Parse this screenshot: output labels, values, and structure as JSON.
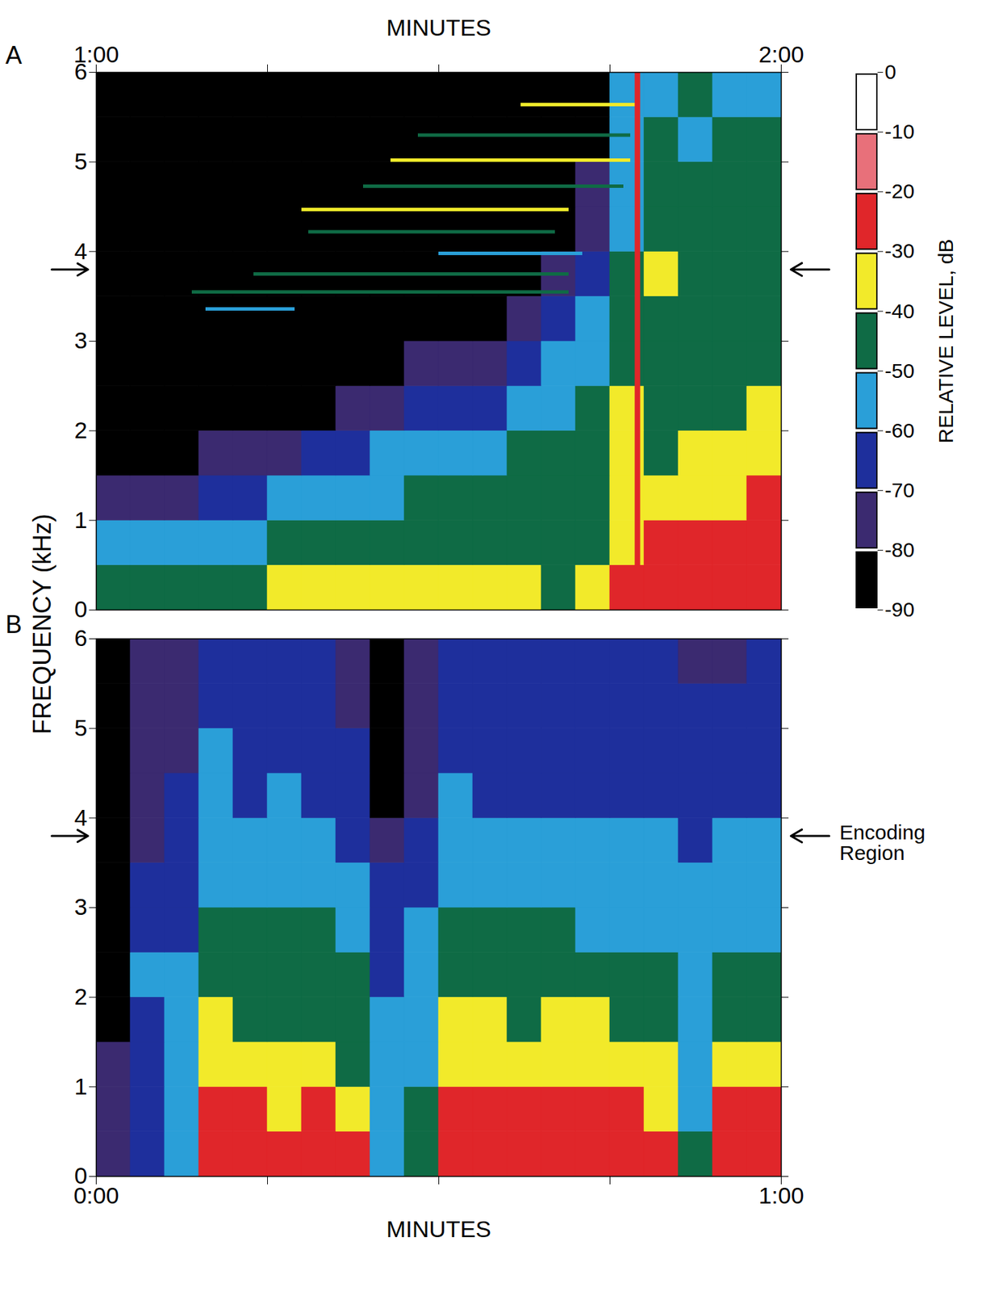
{
  "chart_data": {
    "type": "heatmap",
    "ylabel": "FREQUENCY (kHz)",
    "ylim": [
      0,
      6
    ],
    "yticks": [
      0,
      1,
      2,
      3,
      4,
      5,
      6
    ],
    "frequency_edges": [
      0,
      0.5,
      1,
      1.5,
      2,
      2.5,
      3,
      3.5,
      4,
      4.5,
      5,
      5.5,
      6
    ],
    "encoding_region": 3.8,
    "colorbar": {
      "label": "RELATIVE LEVEL, dB",
      "lim": [
        -90,
        0
      ],
      "ticks": [
        0,
        -10,
        -20,
        -30,
        -40,
        -50,
        -60,
        -70,
        -80,
        -90
      ],
      "levels": [
        -90,
        -80,
        -70,
        -60,
        -50,
        -40,
        -30,
        -20,
        -10,
        0
      ],
      "colors": [
        "#000000",
        "#3b2a70",
        "#1e2f9c",
        "#2a9fd8",
        "#0f6b45",
        "#f2ea2a",
        "#e0262a",
        "#e8707a",
        "#ffffff"
      ]
    },
    "panels": [
      {
        "panel": "A",
        "xlabel": "MINUTES",
        "xlim": [
          1,
          2
        ],
        "xticks": [
          {
            "value": 1,
            "label": "1:00"
          },
          {
            "value": 2,
            "label": "2:00"
          }
        ],
        "x_minor_ticks": [
          1.25,
          1.5,
          1.75
        ],
        "time_edges": [
          1,
          1.05,
          1.1,
          1.15,
          1.2,
          1.25,
          1.3,
          1.35,
          1.4,
          1.45,
          1.5,
          1.55,
          1.6,
          1.65,
          1.7,
          1.75,
          1.8,
          1.85,
          1.9,
          1.95,
          2
        ],
        "values": [
          [
            -45,
            -45,
            -45,
            -42,
            -42,
            -40,
            -40,
            -40,
            -40,
            -38,
            -40,
            -40,
            -40,
            -42,
            -40,
            -30,
            -25,
            -25,
            -22,
            -25
          ],
          [
            -58,
            -58,
            -60,
            -55,
            -52,
            -50,
            -48,
            -48,
            -45,
            -45,
            -45,
            -45,
            -42,
            -45,
            -45,
            -32,
            -25,
            -30,
            -28,
            -25
          ],
          [
            -78,
            -75,
            -72,
            -68,
            -62,
            -60,
            -58,
            -55,
            -52,
            -50,
            -48,
            -48,
            -45,
            -45,
            -45,
            -35,
            -38,
            -35,
            -32,
            -30
          ],
          [
            -85,
            -85,
            -82,
            -80,
            -78,
            -72,
            -68,
            -62,
            -60,
            -58,
            -56,
            -55,
            -50,
            -48,
            -45,
            -38,
            -42,
            -40,
            -38,
            -40
          ],
          [
            -85,
            -85,
            -85,
            -85,
            -85,
            -85,
            -85,
            -78,
            -72,
            -68,
            -65,
            -62,
            -58,
            -52,
            -48,
            -40,
            -45,
            -42,
            -42,
            -40
          ],
          [
            -85,
            -85,
            -85,
            -85,
            -85,
            -85,
            -85,
            -85,
            -85,
            -80,
            -78,
            -72,
            -68,
            -60,
            -52,
            -42,
            -42,
            -45,
            -42,
            -42
          ],
          [
            -85,
            -85,
            -85,
            -85,
            -85,
            -85,
            -85,
            -85,
            -85,
            -85,
            -85,
            -85,
            -80,
            -70,
            -60,
            -45,
            -45,
            -45,
            -48,
            -45
          ],
          [
            -85,
            -85,
            -85,
            -85,
            -85,
            -85,
            -85,
            -85,
            -85,
            -85,
            -85,
            -85,
            -85,
            -78,
            -68,
            -48,
            -40,
            -42,
            -45,
            -45
          ],
          [
            -85,
            -85,
            -85,
            -85,
            -85,
            -85,
            -85,
            -85,
            -85,
            -85,
            -85,
            -85,
            -85,
            -85,
            -75,
            -52,
            -48,
            -48,
            -45,
            -48
          ],
          [
            -85,
            -85,
            -85,
            -85,
            -85,
            -85,
            -85,
            -85,
            -85,
            -85,
            -85,
            -85,
            -85,
            -85,
            -80,
            -55,
            -50,
            -48,
            -50,
            -48
          ],
          [
            -85,
            -85,
            -85,
            -85,
            -85,
            -85,
            -85,
            -85,
            -85,
            -85,
            -85,
            -85,
            -85,
            -85,
            -85,
            -58,
            -50,
            -52,
            -48,
            -50
          ],
          [
            -85,
            -85,
            -85,
            -85,
            -85,
            -85,
            -85,
            -85,
            -85,
            -85,
            -85,
            -85,
            -85,
            -85,
            -85,
            -60,
            -52,
            -50,
            -52,
            -52
          ]
        ],
        "tones": [
          {
            "frequency": 5.64,
            "start": 1.62,
            "end": 1.79,
            "level": -38
          },
          {
            "frequency": 5.3,
            "start": 1.47,
            "end": 1.78,
            "level": -42
          },
          {
            "frequency": 5.02,
            "start": 1.43,
            "end": 1.78,
            "level": -38
          },
          {
            "frequency": 4.73,
            "start": 1.39,
            "end": 1.77,
            "level": -42
          },
          {
            "frequency": 4.47,
            "start": 1.3,
            "end": 1.69,
            "level": -38
          },
          {
            "frequency": 4.22,
            "start": 1.31,
            "end": 1.67,
            "level": -45
          },
          {
            "frequency": 3.98,
            "start": 1.5,
            "end": 1.71,
            "level": -55
          },
          {
            "frequency": 3.75,
            "start": 1.23,
            "end": 1.69,
            "level": -42
          },
          {
            "frequency": 3.55,
            "start": 1.14,
            "end": 1.69,
            "level": -48
          },
          {
            "frequency": 3.36,
            "start": 1.16,
            "end": 1.29,
            "level": -55
          }
        ],
        "transient": {
          "time": 1.79,
          "level": -25
        }
      },
      {
        "panel": "B",
        "xlabel": "MINUTES",
        "xlim": [
          0,
          1
        ],
        "xticks": [
          {
            "value": 0,
            "label": "0:00"
          },
          {
            "value": 1,
            "label": "1:00"
          }
        ],
        "x_minor_ticks": [
          0.25,
          0.5,
          0.75
        ],
        "time_edges": [
          0,
          0.05,
          0.1,
          0.15,
          0.2,
          0.25,
          0.3,
          0.35,
          0.4,
          0.45,
          0.5,
          0.55,
          0.6,
          0.65,
          0.7,
          0.75,
          0.8,
          0.85,
          0.9,
          0.95,
          1
        ],
        "values": [
          [
            -80,
            -65,
            -55,
            -25,
            -25,
            -28,
            -25,
            -30,
            -55,
            -45,
            -25,
            -28,
            -28,
            -25,
            -25,
            -28,
            -25,
            -50,
            -28,
            -25
          ],
          [
            -80,
            -65,
            -58,
            -28,
            -28,
            -32,
            -30,
            -35,
            -58,
            -50,
            -28,
            -30,
            -30,
            -28,
            -28,
            -30,
            -32,
            -55,
            -30,
            -30
          ],
          [
            -80,
            -62,
            -58,
            -35,
            -38,
            -40,
            -38,
            -42,
            -58,
            -55,
            -32,
            -35,
            -38,
            -35,
            -38,
            -35,
            -38,
            -52,
            -40,
            -35
          ],
          [
            -82,
            -62,
            -60,
            -40,
            -42,
            -45,
            -42,
            -48,
            -60,
            -55,
            -38,
            -40,
            -42,
            -40,
            -40,
            -42,
            -42,
            -55,
            -45,
            -42
          ],
          [
            -82,
            -60,
            -60,
            -45,
            -45,
            -48,
            -45,
            -50,
            -62,
            -58,
            -42,
            -45,
            -45,
            -45,
            -45,
            -45,
            -48,
            -55,
            -50,
            -48
          ],
          [
            -82,
            -62,
            -62,
            -48,
            -50,
            -50,
            -50,
            -55,
            -65,
            -60,
            -48,
            -50,
            -50,
            -50,
            -52,
            -52,
            -52,
            -58,
            -55,
            -55
          ],
          [
            -85,
            -65,
            -62,
            -52,
            -55,
            -55,
            -55,
            -58,
            -68,
            -62,
            -52,
            -55,
            -55,
            -55,
            -55,
            -55,
            -58,
            -60,
            -58,
            -58
          ],
          [
            -85,
            -72,
            -65,
            -55,
            -58,
            -58,
            -58,
            -62,
            -75,
            -68,
            -55,
            -58,
            -58,
            -60,
            -58,
            -58,
            -60,
            -62,
            -60,
            -60
          ],
          [
            -85,
            -75,
            -68,
            -58,
            -62,
            -60,
            -62,
            -65,
            -82,
            -72,
            -58,
            -62,
            -62,
            -62,
            -62,
            -62,
            -62,
            -65,
            -65,
            -62
          ],
          [
            -85,
            -78,
            -72,
            -60,
            -65,
            -62,
            -65,
            -68,
            -85,
            -75,
            -62,
            -65,
            -65,
            -65,
            -65,
            -65,
            -65,
            -68,
            -68,
            -65
          ],
          [
            -85,
            -78,
            -75,
            -65,
            -65,
            -65,
            -68,
            -72,
            -85,
            -78,
            -65,
            -68,
            -65,
            -68,
            -68,
            -65,
            -68,
            -70,
            -70,
            -68
          ],
          [
            -88,
            -80,
            -78,
            -68,
            -68,
            -68,
            -70,
            -75,
            -88,
            -80,
            -68,
            -70,
            -68,
            -70,
            -70,
            -68,
            -70,
            -72,
            -72,
            -70
          ]
        ],
        "annotation": "Encoding Region"
      }
    ]
  }
}
